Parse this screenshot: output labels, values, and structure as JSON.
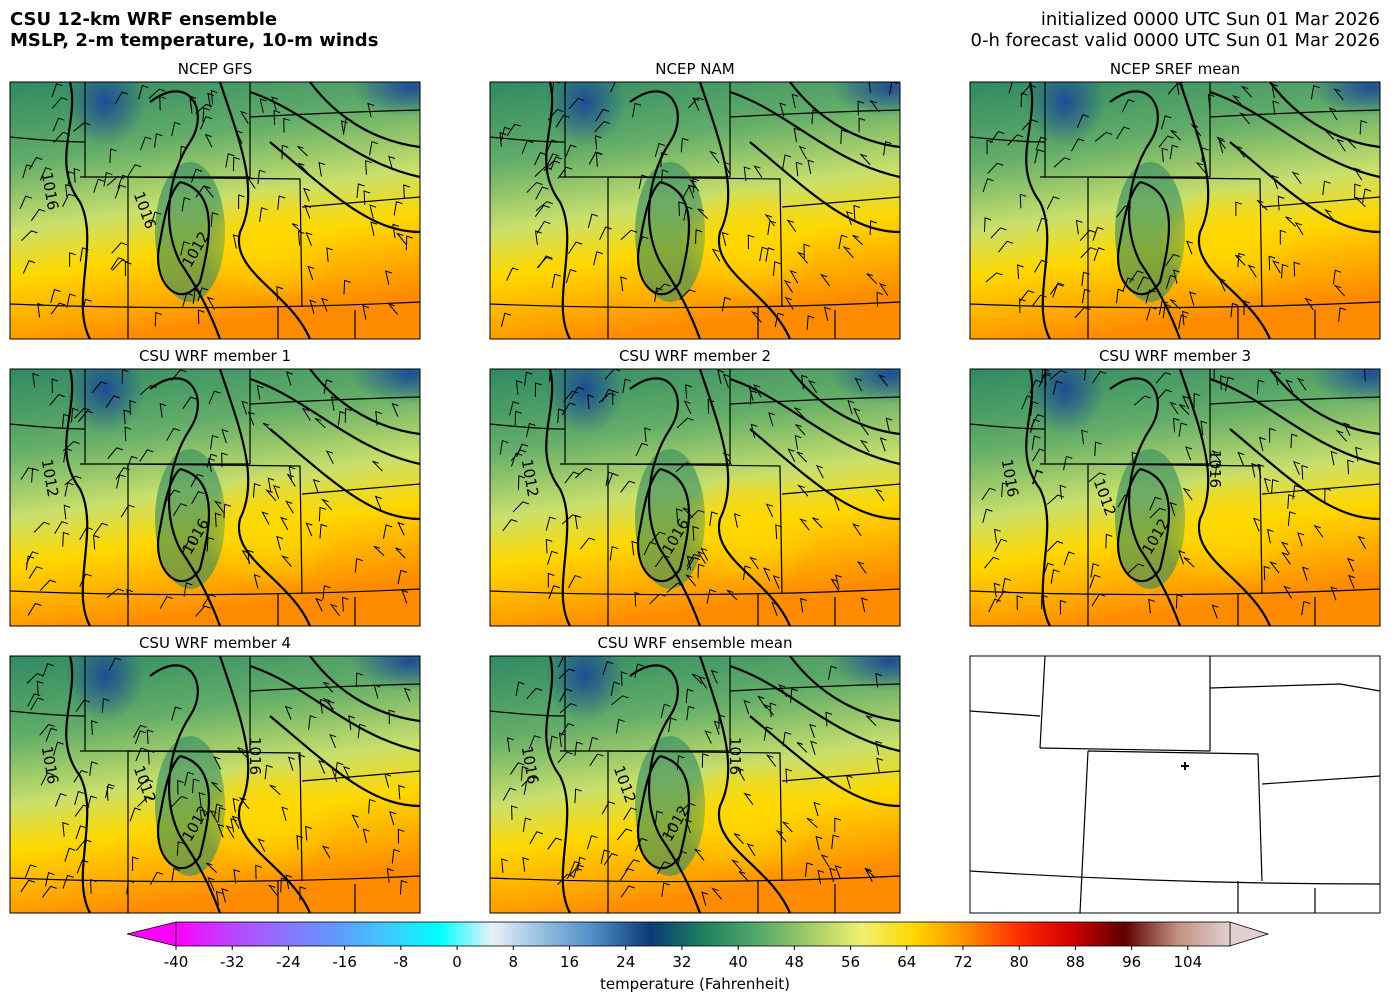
{
  "header": {
    "title": [
      "CSU 12-km WRF ensemble",
      "MSLP, 2-m temperature, 10-m winds"
    ],
    "init": "initialized 0000 UTC Sun 01 Mar 2026",
    "valid": "0-h forecast valid 0000 UTC Sun 01 Mar 2026"
  },
  "panels": [
    {
      "title": "NCEP GFS",
      "isobar_labels": [
        "1016",
        "1012",
        "1016"
      ]
    },
    {
      "title": "NCEP NAM",
      "isobar_labels": []
    },
    {
      "title": "NCEP SREF mean",
      "isobar_labels": []
    },
    {
      "title": "CSU WRF member 1",
      "isobar_labels": [
        "1012",
        "1016"
      ]
    },
    {
      "title": "CSU WRF member 2",
      "isobar_labels": [
        "1012",
        "1016"
      ]
    },
    {
      "title": "CSU WRF member 3",
      "isobar_labels": [
        "1016",
        "1012",
        "1012",
        "1016"
      ]
    },
    {
      "title": "CSU WRF member 4",
      "isobar_labels": [
        "1016",
        "1012",
        "1012",
        "1016"
      ]
    },
    {
      "title": "CSU WRF ensemble mean",
      "isobar_labels": [
        "1016",
        "1012",
        "1012",
        "1016"
      ]
    }
  ],
  "colorbar": {
    "label": "temperature (Fahrenheit)",
    "lim": [
      -40,
      110
    ],
    "ticks": [
      -40,
      -32,
      -24,
      -16,
      -8,
      0,
      8,
      16,
      24,
      32,
      40,
      48,
      56,
      64,
      72,
      80,
      88,
      96,
      104
    ],
    "colors": [
      "#ff00ff",
      "#c040ff",
      "#9070ff",
      "#6098ff",
      "#40c8ff",
      "#00ffff",
      "#e8f0f8",
      "#90bce0",
      "#4a88c4",
      "#0c3a78",
      "#1e8060",
      "#50a868",
      "#a0cc66",
      "#f0f070",
      "#ffd800",
      "#ff8c00",
      "#ff2c00",
      "#d00000",
      "#600000",
      "#c09080",
      "#e0d0d0"
    ]
  }
}
